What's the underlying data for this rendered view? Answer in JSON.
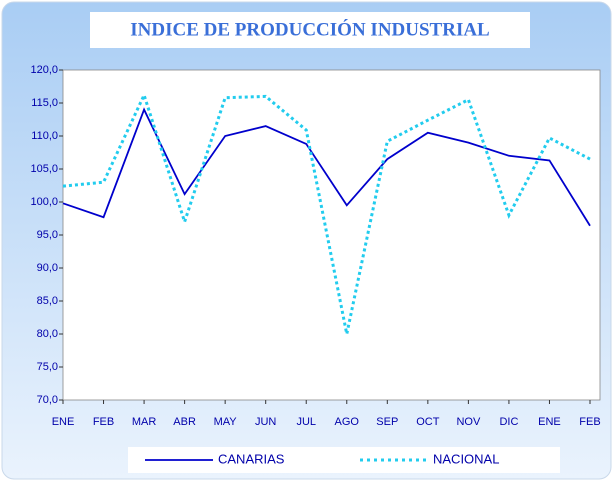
{
  "chart_data": {
    "type": "line",
    "title": "INDICE DE PRODUCCIÓN INDUSTRIAL",
    "categories": [
      "ENE",
      "FEB",
      "MAR",
      "ABR",
      "MAY",
      "JUN",
      "JUL",
      "AGO",
      "SEP",
      "OCT",
      "NOV",
      "DIC",
      "ENE",
      "FEB"
    ],
    "series": [
      {
        "name": "CANARIAS",
        "color": "#0000cc",
        "dashed": false,
        "values": [
          99.8,
          97.7,
          114.0,
          101.2,
          110.0,
          111.5,
          108.8,
          99.5,
          106.5,
          110.5,
          109.0,
          107.0,
          106.3,
          96.4
        ]
      },
      {
        "name": "NACIONAL",
        "color": "#22ccee",
        "dashed": true,
        "values": [
          102.4,
          103.0,
          116.2,
          97.0,
          115.8,
          116.0,
          110.9,
          80.0,
          109.2,
          112.4,
          115.5,
          98.0,
          109.7,
          106.5
        ]
      }
    ],
    "ylim": [
      70,
      120
    ],
    "yticks": [
      {
        "value": 70,
        "label": "70,0"
      },
      {
        "value": 75,
        "label": "75,0"
      },
      {
        "value": 80,
        "label": "80,0"
      },
      {
        "value": 85,
        "label": "85,0"
      },
      {
        "value": 90,
        "label": "90,0"
      },
      {
        "value": 95,
        "label": "95,0"
      },
      {
        "value": 100,
        "label": "100,0"
      },
      {
        "value": 105,
        "label": "105,0"
      },
      {
        "value": 110,
        "label": "110,0"
      },
      {
        "value": 115,
        "label": "115,0"
      },
      {
        "value": 120,
        "label": "120,0"
      }
    ],
    "grid": false,
    "legend": "bottom"
  }
}
